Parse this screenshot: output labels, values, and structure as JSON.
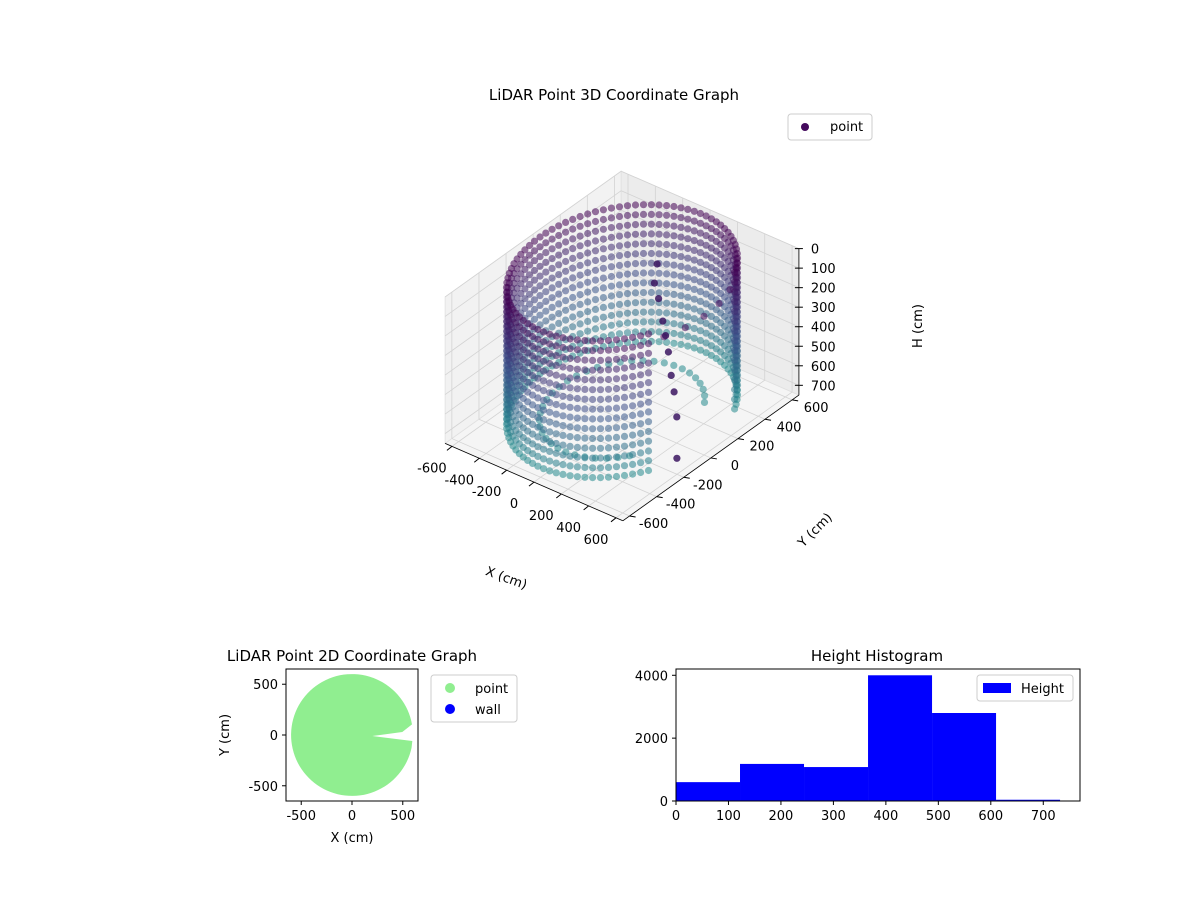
{
  "chart_data": [
    {
      "type": "scatter3d",
      "title": "LiDAR Point 3D Coordinate Graph",
      "xlabel": "X (cm)",
      "ylabel": "Y (cm)",
      "zlabel": "H (cm)",
      "xlim": [
        -650,
        650
      ],
      "ylim": [
        -650,
        650
      ],
      "zlim": [
        750,
        0
      ],
      "x_ticks": [
        -600,
        -400,
        -200,
        0,
        200,
        400,
        600
      ],
      "y_ticks": [
        -600,
        -400,
        -200,
        0,
        200,
        400,
        600
      ],
      "z_ticks": [
        0,
        100,
        200,
        300,
        400,
        500,
        600,
        700
      ],
      "legend": {
        "labels": [
          "point"
        ],
        "placement": "top-right"
      },
      "colormap": "viridis",
      "grid": true,
      "wall": {
        "radius": 600,
        "center": [
          0,
          0
        ],
        "height_range": [
          0,
          750
        ],
        "opening_angle_deg": [
          330,
          30
        ]
      },
      "outliers": [
        {
          "x": -120,
          "y": 380,
          "h": 180
        },
        {
          "x": -60,
          "y": 300,
          "h": 220
        },
        {
          "x": 20,
          "y": 250,
          "h": 250
        },
        {
          "x": 120,
          "y": 180,
          "h": 300
        },
        {
          "x": 200,
          "y": 120,
          "h": 320
        },
        {
          "x": 280,
          "y": 60,
          "h": 350
        },
        {
          "x": 380,
          "y": -20,
          "h": 400
        },
        {
          "x": 460,
          "y": -80,
          "h": 430
        },
        {
          "x": 520,
          "y": -120,
          "h": 520
        },
        {
          "x": 560,
          "y": -160,
          "h": 700
        }
      ]
    },
    {
      "type": "scatter",
      "title": "LiDAR Point 2D Coordinate Graph",
      "xlabel": "X (cm)",
      "ylabel": "Y (cm)",
      "xlim": [
        -650,
        650
      ],
      "ylim": [
        -650,
        650
      ],
      "x_ticks": [
        -500,
        0,
        500
      ],
      "y_ticks": [
        -500,
        0,
        500
      ],
      "series": [
        {
          "name": "point",
          "color": "#90ee90"
        },
        {
          "name": "wall",
          "color": "#0000ff"
        }
      ],
      "legend": {
        "placement": "outside-right"
      },
      "region": {
        "shape": "disc",
        "radius": 600,
        "notch_angle_deg": [
          -12,
          10
        ]
      }
    },
    {
      "type": "bar",
      "title": "Height Histogram",
      "xlabel": "",
      "ylabel": "",
      "bin_edges": [
        0,
        122,
        244,
        366,
        488,
        610,
        732
      ],
      "values": [
        600,
        1180,
        1080,
        4000,
        2800,
        40
      ],
      "color": "#0000ff",
      "xlim": [
        0,
        770
      ],
      "ylim": [
        0,
        4200
      ],
      "x_ticks": [
        0,
        100,
        200,
        300,
        400,
        500,
        600,
        700
      ],
      "y_ticks": [
        0,
        2000,
        4000
      ],
      "legend": {
        "labels": [
          "Height"
        ],
        "placement": "top-right"
      }
    }
  ]
}
